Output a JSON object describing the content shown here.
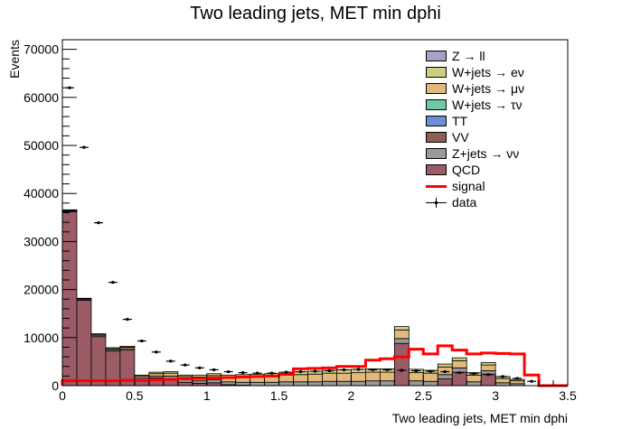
{
  "title": "Two leading jets, MET min dphi",
  "chart_data": {
    "type": "bar",
    "stacked": true,
    "title": "Two leading jets, MET min dphi",
    "xlabel": "Two leading jets, MET min dphi",
    "ylabel": "Events",
    "xlim": [
      0,
      3.5
    ],
    "ylim": [
      0,
      72000
    ],
    "xticks": [
      "0",
      "0.5",
      "1",
      "1.5",
      "2",
      "2.5",
      "3",
      "3.5"
    ],
    "yticks": [
      "0",
      "10000",
      "20000",
      "30000",
      "40000",
      "50000",
      "60000",
      "70000"
    ],
    "bin_width": 0.1,
    "legend_position": "top-right",
    "series": [
      {
        "name": "QCD",
        "color": "#9b5c66",
        "values": [
          36200,
          17800,
          10200,
          7200,
          7400,
          1200,
          1600,
          1500,
          700,
          500,
          600,
          200,
          100,
          0,
          0,
          0,
          0,
          0,
          0,
          0,
          0,
          0,
          0,
          8800,
          0,
          0,
          1400,
          2800,
          0,
          2400,
          0,
          0,
          0,
          0,
          0
        ]
      },
      {
        "name": "Z+jets → νν",
        "color": "#9a9a9a",
        "values": [
          200,
          200,
          300,
          300,
          300,
          400,
          400,
          500,
          500,
          500,
          600,
          600,
          600,
          700,
          700,
          800,
          800,
          800,
          900,
          900,
          900,
          1000,
          1000,
          1000,
          1000,
          900,
          900,
          900,
          800,
          700,
          600,
          400,
          0,
          0,
          0
        ]
      },
      {
        "name": "VV",
        "color": "#8c6151",
        "values": [
          0,
          0,
          0,
          0,
          0,
          0,
          0,
          0,
          0,
          0,
          0,
          0,
          0,
          0,
          0,
          0,
          0,
          0,
          0,
          0,
          0,
          0,
          0,
          0,
          0,
          0,
          0,
          0,
          0,
          0,
          0,
          0,
          0,
          0,
          0
        ]
      },
      {
        "name": "TT",
        "color": "#6d8ed6",
        "values": [
          0,
          0,
          0,
          0,
          0,
          0,
          0,
          0,
          0,
          0,
          0,
          0,
          0,
          0,
          0,
          0,
          0,
          0,
          0,
          0,
          0,
          0,
          0,
          0,
          0,
          0,
          0,
          0,
          0,
          0,
          0,
          0,
          0,
          0,
          0
        ]
      },
      {
        "name": "W+jets → τν",
        "color": "#6fcaa3",
        "values": [
          0,
          0,
          0,
          0,
          0,
          0,
          0,
          0,
          0,
          0,
          0,
          0,
          0,
          0,
          0,
          0,
          0,
          0,
          0,
          0,
          0,
          0,
          0,
          0,
          0,
          0,
          0,
          0,
          0,
          0,
          0,
          0,
          0,
          0,
          0
        ]
      },
      {
        "name": "W+jets → μν",
        "color": "#e2b87b",
        "values": [
          100,
          100,
          200,
          200,
          300,
          400,
          500,
          600,
          700,
          800,
          900,
          1000,
          1100,
          1200,
          1300,
          1400,
          1500,
          1600,
          1700,
          1700,
          1800,
          1800,
          1800,
          1800,
          1700,
          1700,
          1600,
          1500,
          1400,
          1200,
          900,
          600,
          0,
          0,
          0
        ]
      },
      {
        "name": "W+jets → eν",
        "color": "#cfcf83",
        "values": [
          100,
          100,
          100,
          200,
          200,
          200,
          300,
          300,
          300,
          400,
          400,
          400,
          500,
          500,
          500,
          600,
          600,
          600,
          600,
          700,
          700,
          700,
          700,
          700,
          700,
          600,
          600,
          600,
          500,
          500,
          400,
          300,
          0,
          0,
          0
        ]
      },
      {
        "name": "Z → ll",
        "color": "#aba0c6",
        "values": [
          0,
          0,
          0,
          0,
          0,
          0,
          0,
          0,
          0,
          0,
          0,
          0,
          0,
          0,
          0,
          0,
          0,
          0,
          0,
          0,
          0,
          0,
          0,
          0,
          0,
          0,
          0,
          0,
          0,
          0,
          0,
          0,
          0,
          0,
          0
        ]
      }
    ],
    "signal": {
      "name": "signal",
      "color": "#ff0000",
      "values": [
        1000,
        1000,
        1000,
        1000,
        1100,
        1100,
        1200,
        1300,
        1400,
        1500,
        1600,
        1700,
        1800,
        1900,
        2000,
        2400,
        3500,
        3600,
        3700,
        4000,
        4000,
        5300,
        5600,
        6000,
        7600,
        6600,
        8300,
        7400,
        6600,
        6800,
        6700,
        6600,
        2200,
        0,
        0
      ]
    },
    "data": {
      "name": "data",
      "color": "#000000",
      "values": [
        62000,
        49600,
        33900,
        21500,
        13800,
        9300,
        7000,
        5100,
        4300,
        3700,
        3300,
        2900,
        2700,
        2600,
        2600,
        2800,
        2900,
        3000,
        3100,
        3300,
        3400,
        3300,
        3300,
        3200,
        3100,
        3000,
        2900,
        2700,
        2500,
        2300,
        1900,
        1500,
        900,
        0,
        0
      ]
    }
  }
}
